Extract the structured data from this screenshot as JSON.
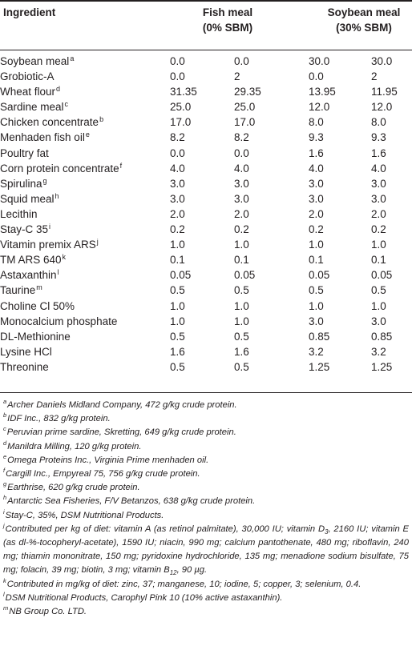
{
  "header": {
    "ingredient": "Ingredient",
    "fish_meal_line1": "Fish meal",
    "fish_meal_line2": "(0% SBM)",
    "soybean_meal_line1": "Soybean meal",
    "soybean_meal_line2": "(30% SBM)"
  },
  "rows": [
    {
      "name": "Soybean meal",
      "sup": "a",
      "v": [
        "0.0",
        "0.0",
        "30.0",
        "30.0"
      ]
    },
    {
      "name": "Grobiotic-A",
      "sup": "",
      "v": [
        "0.0",
        "2",
        "0.0",
        "2"
      ]
    },
    {
      "name": "Wheat flour",
      "sup": "d",
      "v": [
        "31.35",
        "29.35",
        "13.95",
        "11.95"
      ]
    },
    {
      "name": "Sardine meal",
      "sup": "c",
      "v": [
        "25.0",
        "25.0",
        "12.0",
        "12.0"
      ]
    },
    {
      "name": "Chicken concentrate",
      "sup": "b",
      "v": [
        "17.0",
        "17.0",
        "8.0",
        "8.0"
      ]
    },
    {
      "name": "Menhaden fish oil",
      "sup": "e",
      "v": [
        "8.2",
        "8.2",
        "9.3",
        "9.3"
      ]
    },
    {
      "name": "Poultry fat",
      "sup": "",
      "v": [
        "0.0",
        "0.0",
        "1.6",
        "1.6"
      ]
    },
    {
      "name": "Corn protein concentrate",
      "sup": "f",
      "v": [
        "4.0",
        "4.0",
        "4.0",
        "4.0"
      ]
    },
    {
      "name": "Spirulina",
      "sup": "g",
      "v": [
        "3.0",
        "3.0",
        "3.0",
        "3.0"
      ]
    },
    {
      "name": "Squid meal",
      "sup": "h",
      "v": [
        "3.0",
        "3.0",
        "3.0",
        "3.0"
      ]
    },
    {
      "name": "Lecithin",
      "sup": "",
      "v": [
        "2.0",
        "2.0",
        "2.0",
        "2.0"
      ]
    },
    {
      "name": "Stay-C 35",
      "sup": "i",
      "v": [
        "0.2",
        "0.2",
        "0.2",
        "0.2"
      ]
    },
    {
      "name": "Vitamin premix ARS",
      "sup": "j",
      "v": [
        "1.0",
        "1.0",
        "1.0",
        "1.0"
      ]
    },
    {
      "name": "TM ARS 640",
      "sup": "k",
      "v": [
        "0.1",
        "0.1",
        "0.1",
        "0.1"
      ]
    },
    {
      "name": "Astaxanthin",
      "sup": "l",
      "v": [
        "0.05",
        "0.05",
        "0.05",
        "0.05"
      ]
    },
    {
      "name": "Taurine",
      "sup": "m",
      "v": [
        "0.5",
        "0.5",
        "0.5",
        "0.5"
      ]
    },
    {
      "name": "Choline Cl 50%",
      "sup": "",
      "v": [
        "1.0",
        "1.0",
        "1.0",
        "1.0"
      ]
    },
    {
      "name": "Monocalcium phosphate",
      "sup": "",
      "v": [
        "1.0",
        "1.0",
        "3.0",
        "3.0"
      ]
    },
    {
      "name": "DL-Methionine",
      "sup": "",
      "v": [
        "0.5",
        "0.5",
        "0.85",
        "0.85"
      ]
    },
    {
      "name": "Lysine HCl",
      "sup": "",
      "v": [
        "1.6",
        "1.6",
        "3.2",
        "3.2"
      ]
    },
    {
      "name": "Threonine",
      "sup": "",
      "v": [
        "0.5",
        "0.5",
        "1.25",
        "1.25"
      ]
    }
  ],
  "footnotes": [
    {
      "mark": "a",
      "text": "Archer Daniels Midland Company, 472 g/kg crude protein."
    },
    {
      "mark": "b",
      "text": "IDF Inc., 832 g/kg protein."
    },
    {
      "mark": "c",
      "text": "Peruvian prime sardine, Skretting, 649 g/kg crude protein."
    },
    {
      "mark": "d",
      "text": "Manildra Milling, 120 g/kg protein."
    },
    {
      "mark": "e",
      "text": "Omega Proteins Inc., Virginia Prime menhaden oil."
    },
    {
      "mark": "f",
      "text": "Cargill Inc., Empyreal 75, 756 g/kg crude protein."
    },
    {
      "mark": "g",
      "text": "Earthrise, 620 g/kg crude protein."
    },
    {
      "mark": "h",
      "text": "Antarctic Sea Fisheries, F/V Betanzos, 638 g/kg crude protein."
    },
    {
      "mark": "i",
      "text": "Stay-C, 35%, DSM Nutritional Products."
    },
    {
      "mark": "j",
      "text_parts": [
        "Contributed per kg of diet: vitamin A (as retinol palmitate), 30,000 IU; vitamin D",
        "3",
        ", 2160 IU; vitamin E (as dl-%-tocopheryl-acetate), 1590 IU; niacin, 990 mg; calcium pantothenate, 480 mg; riboflavin, 240 mg; thiamin mononitrate, 150 mg; pyridoxine hydrochloride, 135 mg; menadione sodium bisulfate, 75 mg; folacin, 39 mg; biotin, 3 mg; vitamin B",
        "12",
        ", 90 µg."
      ]
    },
    {
      "mark": "k",
      "text": "Contributed in mg/kg of diet: zinc, 37; manganese, 10; iodine, 5; copper, 3; selenium, 0.4."
    },
    {
      "mark": "l",
      "text": "DSM Nutritional Products, Carophyl Pink 10 (10% active astaxanthin)."
    },
    {
      "mark": "m",
      "text": "NB Group Co. LTD."
    }
  ]
}
